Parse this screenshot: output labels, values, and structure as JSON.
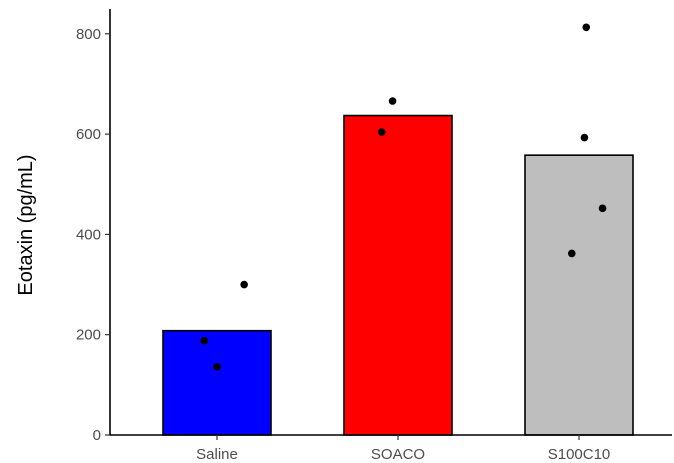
{
  "chart_data": {
    "type": "bar",
    "title": "",
    "xlabel": "",
    "ylabel": "Eotaxin (pg/mL)",
    "ylim": [
      0,
      850
    ],
    "yticks": [
      0,
      200,
      400,
      600,
      800
    ],
    "categories": [
      "Saline",
      "SOACO",
      "S100C10"
    ],
    "values": [
      208,
      637,
      558
    ],
    "bar_colors": [
      "#0000ff",
      "#ff0000",
      "#bebebe"
    ],
    "points": [
      {
        "category": "Saline",
        "offset": 0.15,
        "y": 300
      },
      {
        "category": "Saline",
        "offset": -0.07,
        "y": 188
      },
      {
        "category": "Saline",
        "offset": 0.0,
        "y": 136
      },
      {
        "category": "SOACO",
        "offset": -0.03,
        "y": 666
      },
      {
        "category": "SOACO",
        "offset": -0.09,
        "y": 604
      },
      {
        "category": "S100C10",
        "offset": 0.04,
        "y": 813
      },
      {
        "category": "S100C10",
        "offset": 0.03,
        "y": 593
      },
      {
        "category": "S100C10",
        "offset": 0.13,
        "y": 452
      },
      {
        "category": "S100C10",
        "offset": -0.04,
        "y": 362
      }
    ],
    "grid": false,
    "legend": "none"
  }
}
